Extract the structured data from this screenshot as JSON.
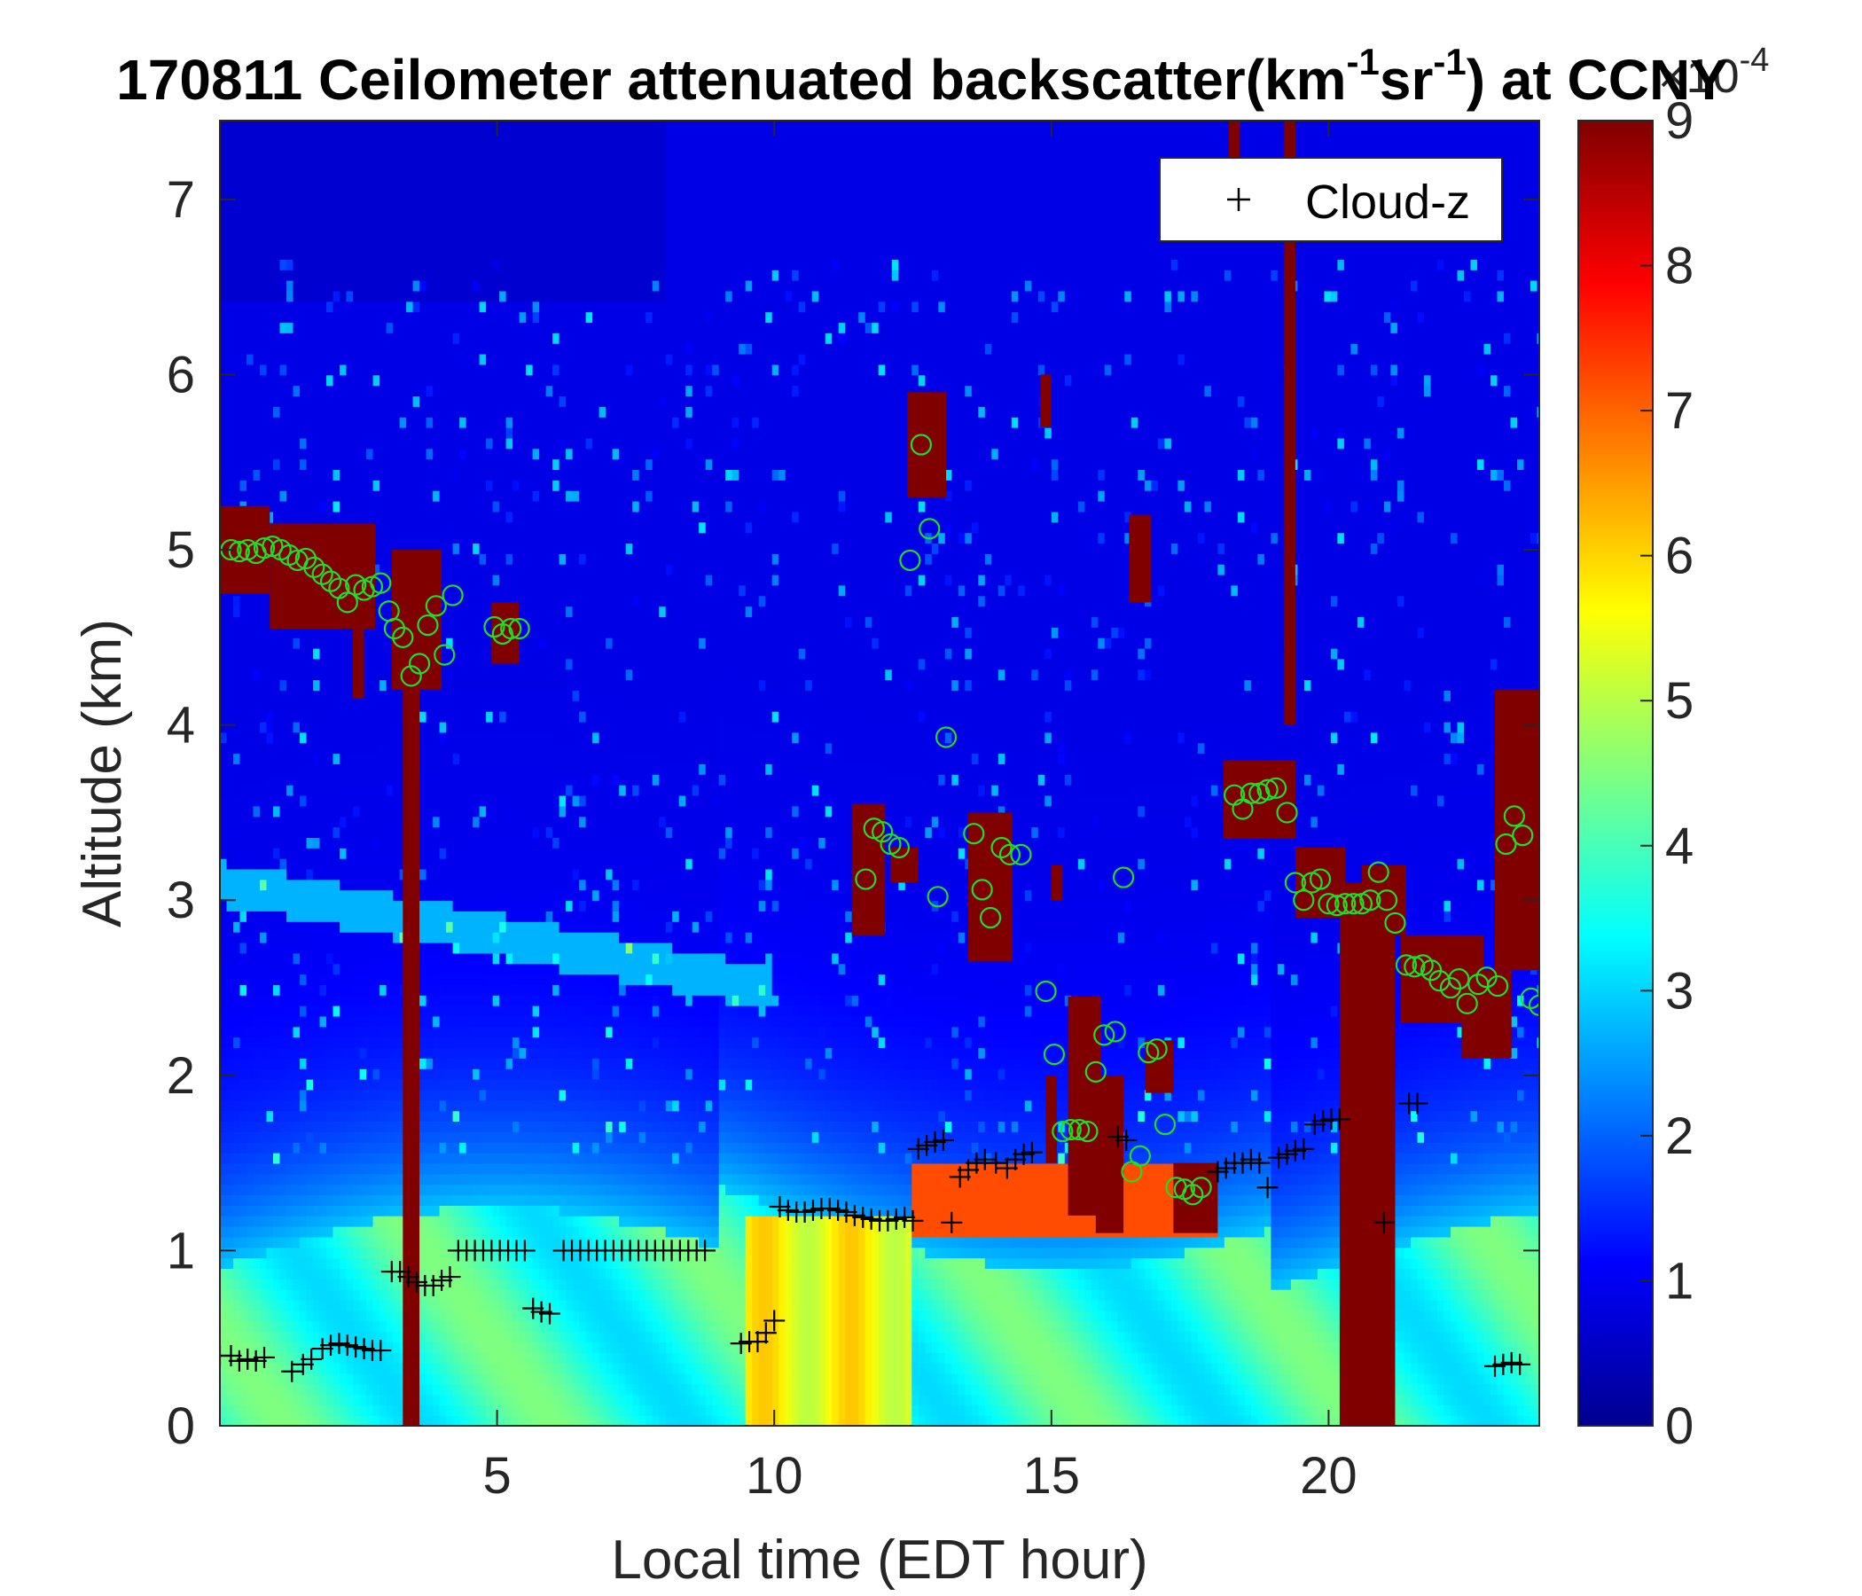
{
  "chart_data": {
    "type": "heatmap",
    "title": "170811 Ceilometer attenuated backscatter(km",
    "title_sup1": "-1",
    "title_mid": "sr",
    "title_sup2": "-1",
    "title_end": ") at CCNY",
    "xlabel": "Local time (EDT hour)",
    "ylabel": "Altitude (km)",
    "xlim": [
      0,
      23.8
    ],
    "ylim": [
      0,
      7.45
    ],
    "xticks": [
      5,
      10,
      15,
      20
    ],
    "yticks": [
      0,
      1,
      2,
      3,
      4,
      5,
      6,
      7
    ],
    "colorbar": {
      "ticks": [
        0,
        1,
        2,
        3,
        4,
        5,
        6,
        7,
        8,
        9
      ],
      "range": [
        0,
        9
      ],
      "multiplier_base": "×10",
      "multiplier_exp": "-4",
      "colormap": "jet"
    },
    "legend": {
      "location": "top-right",
      "entries": [
        {
          "marker": "+",
          "label": "Cloud-z"
        }
      ]
    },
    "colors": {
      "cloud_marker": "#000000",
      "pbl_marker": "#22dd22"
    },
    "cloud_z": [
      [
        0.0,
        0.4
      ],
      [
        0.2,
        0.4
      ],
      [
        0.35,
        0.37
      ],
      [
        0.5,
        0.38
      ],
      [
        0.65,
        0.37
      ],
      [
        0.8,
        0.39
      ],
      [
        1.3,
        0.31
      ],
      [
        1.5,
        0.35
      ],
      [
        1.65,
        0.38
      ],
      [
        1.85,
        0.44
      ],
      [
        2.0,
        0.46
      ],
      [
        2.15,
        0.47
      ],
      [
        2.3,
        0.46
      ],
      [
        2.45,
        0.45
      ],
      [
        2.6,
        0.44
      ],
      [
        2.75,
        0.43
      ],
      [
        2.9,
        0.43
      ],
      [
        3.1,
        0.88
      ],
      [
        3.25,
        0.88
      ],
      [
        3.4,
        0.85
      ],
      [
        3.55,
        0.82
      ],
      [
        3.7,
        0.8
      ],
      [
        3.85,
        0.8
      ],
      [
        4.0,
        0.83
      ],
      [
        4.15,
        0.85
      ],
      [
        4.3,
        1.0
      ],
      [
        4.45,
        1.0
      ],
      [
        4.6,
        1.0
      ],
      [
        4.75,
        1.0
      ],
      [
        4.9,
        1.0
      ],
      [
        5.05,
        1.0
      ],
      [
        5.2,
        1.0
      ],
      [
        5.35,
        1.0
      ],
      [
        5.5,
        1.0
      ],
      [
        5.65,
        0.67
      ],
      [
        5.8,
        0.65
      ],
      [
        5.95,
        0.64
      ],
      [
        6.2,
        1.0
      ],
      [
        6.35,
        1.0
      ],
      [
        6.5,
        1.0
      ],
      [
        6.65,
        1.0
      ],
      [
        6.8,
        1.0
      ],
      [
        6.95,
        1.0
      ],
      [
        7.1,
        1.0
      ],
      [
        7.25,
        1.0
      ],
      [
        7.4,
        1.0
      ],
      [
        7.55,
        1.0
      ],
      [
        7.7,
        1.0
      ],
      [
        7.85,
        1.0
      ],
      [
        8.0,
        1.0
      ],
      [
        8.15,
        1.0
      ],
      [
        8.3,
        1.0
      ],
      [
        8.45,
        1.0
      ],
      [
        8.6,
        1.0
      ],
      [
        8.75,
        1.0
      ],
      [
        9.4,
        0.47
      ],
      [
        9.55,
        0.48
      ],
      [
        9.7,
        0.48
      ],
      [
        9.85,
        0.53
      ],
      [
        10.0,
        0.6
      ],
      [
        10.1,
        1.25
      ],
      [
        10.25,
        1.23
      ],
      [
        10.4,
        1.22
      ],
      [
        10.55,
        1.22
      ],
      [
        10.7,
        1.23
      ],
      [
        10.85,
        1.24
      ],
      [
        11.0,
        1.24
      ],
      [
        11.15,
        1.23
      ],
      [
        11.3,
        1.22
      ],
      [
        11.45,
        1.2
      ],
      [
        11.6,
        1.19
      ],
      [
        11.75,
        1.18
      ],
      [
        11.9,
        1.17
      ],
      [
        12.05,
        1.17
      ],
      [
        12.2,
        1.18
      ],
      [
        12.35,
        1.19
      ],
      [
        12.5,
        1.17
      ],
      [
        12.6,
        1.58
      ],
      [
        12.75,
        1.6
      ],
      [
        12.9,
        1.62
      ],
      [
        13.05,
        1.63
      ],
      [
        13.2,
        1.16
      ],
      [
        13.35,
        1.42
      ],
      [
        13.5,
        1.46
      ],
      [
        13.65,
        1.5
      ],
      [
        13.8,
        1.52
      ],
      [
        14.0,
        1.5
      ],
      [
        14.2,
        1.47
      ],
      [
        14.35,
        1.52
      ],
      [
        14.5,
        1.55
      ],
      [
        14.65,
        1.56
      ],
      [
        16.2,
        1.65
      ],
      [
        16.35,
        1.63
      ],
      [
        18.0,
        1.45
      ],
      [
        18.15,
        1.47
      ],
      [
        18.3,
        1.5
      ],
      [
        18.45,
        1.5
      ],
      [
        18.6,
        1.52
      ],
      [
        18.75,
        1.5
      ],
      [
        18.9,
        1.36
      ],
      [
        19.1,
        1.53
      ],
      [
        19.25,
        1.55
      ],
      [
        19.4,
        1.57
      ],
      [
        19.55,
        1.58
      ],
      [
        19.75,
        1.72
      ],
      [
        19.9,
        1.74
      ],
      [
        20.05,
        1.75
      ],
      [
        20.2,
        1.75
      ],
      [
        21.0,
        1.16
      ],
      [
        21.45,
        1.84
      ],
      [
        21.6,
        1.84
      ],
      [
        23.0,
        0.34
      ],
      [
        23.15,
        0.35
      ],
      [
        23.3,
        0.36
      ],
      [
        23.45,
        0.35
      ]
    ],
    "pbl_circles": [
      [
        0.2,
        5.0
      ],
      [
        0.35,
        4.99
      ],
      [
        0.5,
        5.0
      ],
      [
        0.65,
        4.98
      ],
      [
        0.8,
        5.01
      ],
      [
        0.95,
        5.02
      ],
      [
        1.1,
        5.0
      ],
      [
        1.25,
        4.97
      ],
      [
        1.4,
        4.94
      ],
      [
        1.55,
        4.95
      ],
      [
        1.7,
        4.9
      ],
      [
        1.85,
        4.86
      ],
      [
        2.0,
        4.82
      ],
      [
        2.15,
        4.78
      ],
      [
        2.3,
        4.7
      ],
      [
        2.45,
        4.8
      ],
      [
        2.6,
        4.77
      ],
      [
        2.75,
        4.79
      ],
      [
        2.9,
        4.81
      ],
      [
        3.05,
        4.65
      ],
      [
        3.15,
        4.55
      ],
      [
        3.3,
        4.5
      ],
      [
        3.45,
        4.28
      ],
      [
        3.6,
        4.35
      ],
      [
        3.75,
        4.57
      ],
      [
        3.9,
        4.68
      ],
      [
        4.05,
        4.4
      ],
      [
        4.2,
        4.74
      ],
      [
        4.95,
        4.56
      ],
      [
        5.1,
        4.52
      ],
      [
        5.25,
        4.55
      ],
      [
        5.4,
        4.55
      ],
      [
        11.65,
        3.12
      ],
      [
        11.8,
        3.41
      ],
      [
        11.95,
        3.39
      ],
      [
        12.1,
        3.32
      ],
      [
        12.25,
        3.3
      ],
      [
        12.45,
        4.94
      ],
      [
        12.65,
        5.6
      ],
      [
        12.8,
        5.12
      ],
      [
        12.95,
        3.02
      ],
      [
        13.1,
        3.93
      ],
      [
        13.6,
        3.38
      ],
      [
        13.75,
        3.06
      ],
      [
        13.9,
        2.9
      ],
      [
        14.1,
        3.3
      ],
      [
        14.25,
        3.26
      ],
      [
        14.45,
        3.26
      ],
      [
        14.9,
        2.48
      ],
      [
        15.05,
        2.12
      ],
      [
        15.2,
        1.68
      ],
      [
        15.35,
        1.69
      ],
      [
        15.5,
        1.69
      ],
      [
        15.65,
        1.68
      ],
      [
        15.8,
        2.02
      ],
      [
        15.95,
        2.23
      ],
      [
        16.15,
        2.25
      ],
      [
        16.3,
        3.13
      ],
      [
        16.45,
        1.45
      ],
      [
        16.6,
        1.54
      ],
      [
        16.75,
        2.13
      ],
      [
        16.9,
        2.15
      ],
      [
        17.05,
        1.72
      ],
      [
        17.25,
        1.36
      ],
      [
        17.4,
        1.35
      ],
      [
        17.55,
        1.32
      ],
      [
        17.7,
        1.36
      ],
      [
        18.3,
        3.6
      ],
      [
        18.45,
        3.52
      ],
      [
        18.6,
        3.61
      ],
      [
        18.75,
        3.61
      ],
      [
        18.9,
        3.63
      ],
      [
        19.05,
        3.64
      ],
      [
        19.25,
        3.5
      ],
      [
        19.4,
        3.1
      ],
      [
        19.55,
        3.0
      ],
      [
        19.7,
        3.1
      ],
      [
        19.85,
        3.12
      ],
      [
        20.0,
        2.98
      ],
      [
        20.15,
        2.97
      ],
      [
        20.3,
        2.98
      ],
      [
        20.45,
        2.98
      ],
      [
        20.6,
        2.98
      ],
      [
        20.75,
        3.0
      ],
      [
        20.9,
        3.16
      ],
      [
        21.05,
        3.0
      ],
      [
        21.2,
        2.87
      ],
      [
        21.4,
        2.63
      ],
      [
        21.55,
        2.62
      ],
      [
        21.7,
        2.63
      ],
      [
        21.85,
        2.6
      ],
      [
        22.0,
        2.54
      ],
      [
        22.2,
        2.5
      ],
      [
        22.35,
        2.55
      ],
      [
        22.5,
        2.41
      ],
      [
        22.7,
        2.52
      ],
      [
        22.85,
        2.56
      ],
      [
        23.05,
        2.51
      ],
      [
        23.2,
        3.32
      ],
      [
        23.35,
        3.48
      ],
      [
        23.5,
        3.37
      ],
      [
        23.65,
        2.44
      ],
      [
        23.8,
        2.4
      ]
    ]
  }
}
